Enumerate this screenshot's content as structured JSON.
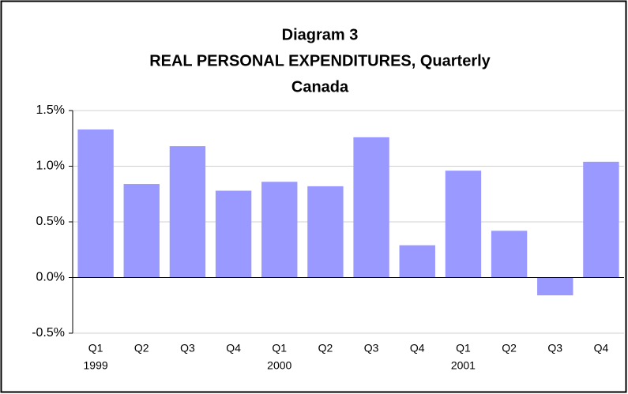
{
  "chart_data": {
    "type": "bar",
    "title": "Diagram 3",
    "subtitle": "REAL PERSONAL EXPENDITURES, Quarterly",
    "region": "Canada",
    "categories": [
      "Q1",
      "Q2",
      "Q3",
      "Q4",
      "Q1",
      "Q2",
      "Q3",
      "Q4",
      "Q1",
      "Q2",
      "Q3",
      "Q4"
    ],
    "year_labels": [
      "1999",
      null,
      null,
      null,
      "2000",
      null,
      null,
      null,
      "2001",
      null,
      null,
      null
    ],
    "values": [
      1.33,
      0.84,
      1.18,
      0.78,
      0.86,
      0.82,
      1.26,
      0.29,
      0.96,
      0.42,
      -0.16,
      1.04
    ],
    "color": "#9999ff",
    "ylim": [
      -0.5,
      1.5
    ],
    "yticks": [
      {
        "value": -0.5,
        "label": "-0.5%"
      },
      {
        "value": 0,
        "label": "0.0%"
      },
      {
        "value": 0.5,
        "label": "0.5%"
      },
      {
        "value": 1,
        "label": "1.0%"
      },
      {
        "value": 1.5,
        "label": "1.5%"
      }
    ],
    "grid": true
  }
}
